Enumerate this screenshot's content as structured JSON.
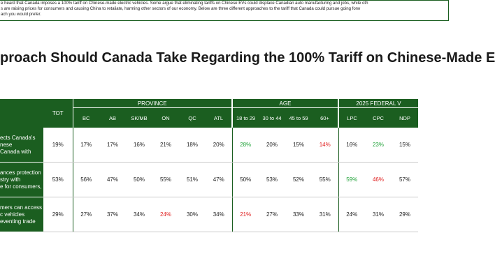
{
  "intro": {
    "line1": "e heard that Canada imposes a 100% tariff on Chinese-made electric vehicles. Some argue that eliminating tariffs on Chinese EVs could displace Canadian auto manufacturing and jobs, while oth",
    "line2": "s are raising prices for consumers and causing China to retaliate, harming other sectors of our economy. Below are three different approaches to the tariff that Canada could pursue going forw",
    "line3": "ach you would prefer."
  },
  "title": "proach Should Canada Take Regarding the 100% Tariff on Chinese-Made E",
  "table": {
    "tot_label": "TOT",
    "groups": {
      "province": "PROVINCE",
      "age": "AGE",
      "federal": "2025 FEDERAL V"
    },
    "columns": [
      "BC",
      "AB",
      "SK/MB",
      "ON",
      "QC",
      "ATL",
      "18 to 29",
      "30 to 44",
      "45 to 59",
      "60+",
      "LPC",
      "CPC",
      "NDP"
    ],
    "rows": [
      {
        "label_lines": [
          "ects Canada's",
          "nese",
          "Canada with"
        ],
        "tot": "19%",
        "cells": [
          {
            "v": "17%",
            "c": ""
          },
          {
            "v": "17%",
            "c": ""
          },
          {
            "v": "16%",
            "c": ""
          },
          {
            "v": "21%",
            "c": ""
          },
          {
            "v": "18%",
            "c": ""
          },
          {
            "v": "20%",
            "c": ""
          },
          {
            "v": "28%",
            "c": "green"
          },
          {
            "v": "20%",
            "c": ""
          },
          {
            "v": "15%",
            "c": ""
          },
          {
            "v": "14%",
            "c": "red"
          },
          {
            "v": "16%",
            "c": ""
          },
          {
            "v": "23%",
            "c": "green"
          },
          {
            "v": "15%",
            "c": ""
          }
        ]
      },
      {
        "label_lines": [
          "ances protection",
          "stry with",
          "e for consumers,"
        ],
        "tot": "53%",
        "cells": [
          {
            "v": "56%",
            "c": ""
          },
          {
            "v": "47%",
            "c": ""
          },
          {
            "v": "50%",
            "c": ""
          },
          {
            "v": "55%",
            "c": ""
          },
          {
            "v": "51%",
            "c": ""
          },
          {
            "v": "47%",
            "c": ""
          },
          {
            "v": "50%",
            "c": ""
          },
          {
            "v": "53%",
            "c": ""
          },
          {
            "v": "52%",
            "c": ""
          },
          {
            "v": "55%",
            "c": ""
          },
          {
            "v": "59%",
            "c": "green"
          },
          {
            "v": "46%",
            "c": "red"
          },
          {
            "v": "57%",
            "c": ""
          }
        ]
      },
      {
        "label_lines": [
          "mers can access",
          "c vehicles",
          "eventing trade"
        ],
        "tot": "29%",
        "cells": [
          {
            "v": "27%",
            "c": ""
          },
          {
            "v": "37%",
            "c": ""
          },
          {
            "v": "34%",
            "c": ""
          },
          {
            "v": "24%",
            "c": "red"
          },
          {
            "v": "30%",
            "c": ""
          },
          {
            "v": "34%",
            "c": ""
          },
          {
            "v": "21%",
            "c": "red"
          },
          {
            "v": "27%",
            "c": ""
          },
          {
            "v": "33%",
            "c": ""
          },
          {
            "v": "31%",
            "c": ""
          },
          {
            "v": "24%",
            "c": ""
          },
          {
            "v": "31%",
            "c": ""
          },
          {
            "v": "29%",
            "c": ""
          }
        ]
      }
    ]
  },
  "colors": {
    "header_green": "#1b5e20",
    "highlight_green": "#22a33a",
    "highlight_red": "#e02020"
  }
}
